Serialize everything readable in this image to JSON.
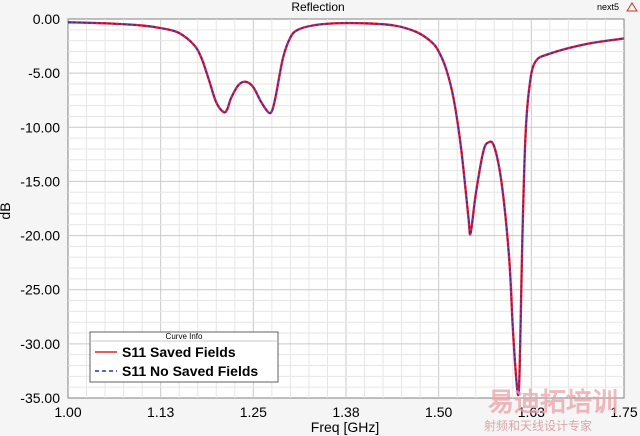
{
  "chart_data": {
    "type": "line",
    "title": "Reflection",
    "corner_tag": "next5",
    "xlabel": "Freq [GHz]",
    "ylabel": "dB",
    "xlim": [
      1.0,
      1.75
    ],
    "ylim": [
      -35.0,
      0.0
    ],
    "x_ticks": [
      "1.00",
      "1.13",
      "1.25",
      "1.38",
      "1.50",
      "1.63",
      "1.75"
    ],
    "y_ticks": [
      "0.00",
      "-5.00",
      "-10.00",
      "-15.00",
      "-20.00",
      "-25.00",
      "-30.00",
      "-35.00"
    ],
    "grid": true,
    "legend": {
      "title": "Curve Info",
      "placement": "bottom-left",
      "entries": [
        "S11 Saved Fields",
        "S11 No Saved Fields"
      ]
    },
    "series": [
      {
        "name": "S11 Saved Fields",
        "color": "#e8202a",
        "dash": "solid",
        "x": [
          1.0,
          1.05,
          1.1,
          1.13,
          1.15,
          1.17,
          1.18,
          1.19,
          1.2,
          1.21,
          1.215,
          1.22,
          1.23,
          1.24,
          1.25,
          1.26,
          1.27,
          1.275,
          1.28,
          1.29,
          1.3,
          1.31,
          1.33,
          1.36,
          1.4,
          1.44,
          1.47,
          1.49,
          1.5,
          1.51,
          1.52,
          1.53,
          1.54,
          1.543,
          1.55,
          1.56,
          1.567,
          1.575,
          1.585,
          1.595,
          1.6,
          1.605,
          1.608,
          1.61,
          1.613,
          1.617,
          1.622,
          1.63,
          1.65,
          1.7,
          1.75
        ],
        "values": [
          -0.3,
          -0.4,
          -0.6,
          -0.9,
          -1.3,
          -2.4,
          -3.6,
          -5.6,
          -7.7,
          -8.6,
          -8.3,
          -7.3,
          -6.1,
          -5.8,
          -6.3,
          -7.6,
          -8.6,
          -8.5,
          -7.2,
          -3.6,
          -1.7,
          -1.0,
          -0.6,
          -0.4,
          -0.4,
          -0.6,
          -1.2,
          -2.1,
          -3.0,
          -4.6,
          -7.3,
          -11.8,
          -18.2,
          -19.8,
          -16.2,
          -12.3,
          -11.4,
          -11.8,
          -15.2,
          -22.0,
          -28.5,
          -33.5,
          -34.5,
          -30.0,
          -20.0,
          -11.0,
          -6.5,
          -4.0,
          -3.2,
          -2.3,
          -1.8
        ]
      },
      {
        "name": "S11 No Saved Fields",
        "color": "#2430c8",
        "dash": "dashed",
        "x": [
          1.0,
          1.05,
          1.1,
          1.13,
          1.15,
          1.17,
          1.18,
          1.19,
          1.2,
          1.21,
          1.215,
          1.22,
          1.23,
          1.24,
          1.25,
          1.26,
          1.27,
          1.275,
          1.28,
          1.29,
          1.3,
          1.31,
          1.33,
          1.36,
          1.4,
          1.44,
          1.47,
          1.49,
          1.5,
          1.51,
          1.52,
          1.53,
          1.54,
          1.543,
          1.55,
          1.56,
          1.567,
          1.575,
          1.585,
          1.595,
          1.6,
          1.605,
          1.608,
          1.61,
          1.613,
          1.617,
          1.622,
          1.63,
          1.65,
          1.7,
          1.75
        ],
        "values": [
          -0.3,
          -0.4,
          -0.6,
          -0.9,
          -1.3,
          -2.4,
          -3.6,
          -5.6,
          -7.7,
          -8.6,
          -8.3,
          -7.3,
          -6.1,
          -5.8,
          -6.3,
          -7.6,
          -8.6,
          -8.5,
          -7.2,
          -3.6,
          -1.7,
          -1.0,
          -0.6,
          -0.4,
          -0.4,
          -0.6,
          -1.2,
          -2.1,
          -3.0,
          -4.6,
          -7.3,
          -11.8,
          -18.2,
          -19.8,
          -16.2,
          -12.3,
          -11.4,
          -11.8,
          -15.2,
          -22.0,
          -28.5,
          -33.5,
          -34.5,
          -30.0,
          -20.0,
          -11.0,
          -6.5,
          -4.0,
          -3.2,
          -2.3,
          -1.8
        ]
      }
    ]
  },
  "watermark": {
    "main": "易迪拓培训",
    "sub": "射频和天线设计专家"
  }
}
